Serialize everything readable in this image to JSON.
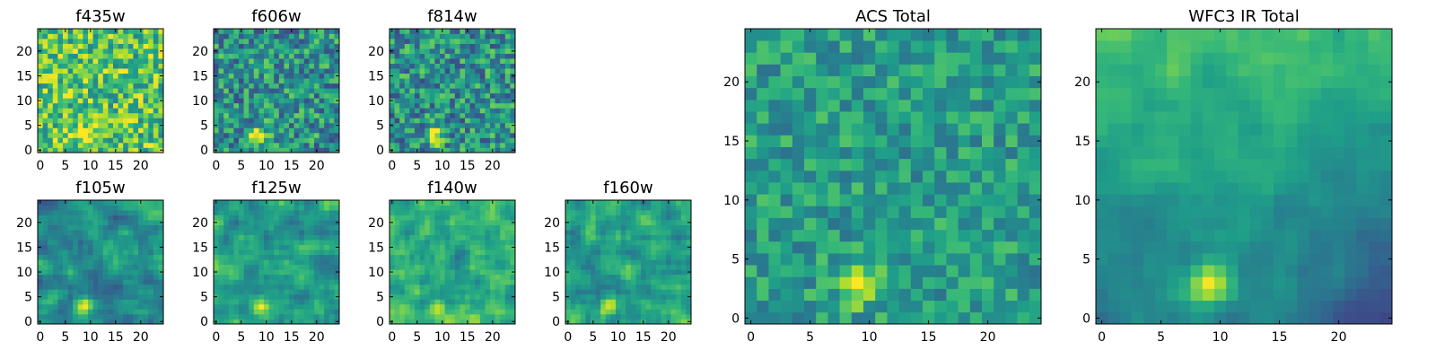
{
  "figure": {
    "background": "#ffffff"
  },
  "chart_data": [
    {
      "type": "heatmap",
      "title": "f435w",
      "xlim": [
        -0.5,
        24.5
      ],
      "ylim": [
        -0.5,
        24.5
      ],
      "xticks": [
        "0",
        "5",
        "10",
        "15",
        "20"
      ],
      "yticks": [
        "0",
        "5",
        "10",
        "15",
        "20"
      ],
      "colormap": "viridis",
      "source_position": [
        9,
        3
      ],
      "source_strength": 0.45,
      "noise_level": 0.55,
      "bg_level": 0.72,
      "blur": false
    },
    {
      "type": "heatmap",
      "title": "f606w",
      "xlim": [
        -0.5,
        24.5
      ],
      "ylim": [
        -0.5,
        24.5
      ],
      "xticks": [
        "0",
        "5",
        "10",
        "15",
        "20"
      ],
      "yticks": [
        "0",
        "5",
        "10",
        "15",
        "20"
      ],
      "colormap": "viridis",
      "source_position": [
        8.5,
        3
      ],
      "source_strength": 0.6,
      "noise_level": 0.55,
      "bg_level": 0.5,
      "blur": false
    },
    {
      "type": "heatmap",
      "title": "f814w",
      "xlim": [
        -0.5,
        24.5
      ],
      "ylim": [
        -0.5,
        24.5
      ],
      "xticks": [
        "0",
        "5",
        "10",
        "15",
        "20"
      ],
      "yticks": [
        "0",
        "5",
        "10",
        "15",
        "20"
      ],
      "colormap": "viridis",
      "source_position": [
        8.5,
        3
      ],
      "source_strength": 0.6,
      "noise_level": 0.55,
      "bg_level": 0.5,
      "blur": false
    },
    {
      "type": "heatmap",
      "title": "f105w",
      "xlim": [
        -0.5,
        24.5
      ],
      "ylim": [
        -0.5,
        24.5
      ],
      "xticks": [
        "0",
        "5",
        "10",
        "15",
        "20"
      ],
      "yticks": [
        "0",
        "5",
        "10",
        "15",
        "20"
      ],
      "colormap": "viridis",
      "source_position": [
        9,
        3.5
      ],
      "source_strength": 0.5,
      "noise_level": 0.45,
      "bg_level": 0.5,
      "blur": true
    },
    {
      "type": "heatmap",
      "title": "f125w",
      "xlim": [
        -0.5,
        24.5
      ],
      "ylim": [
        -0.5,
        24.5
      ],
      "xticks": [
        "0",
        "5",
        "10",
        "15",
        "20"
      ],
      "yticks": [
        "0",
        "5",
        "10",
        "15",
        "20"
      ],
      "colormap": "viridis",
      "source_position": [
        9,
        3
      ],
      "source_strength": 0.45,
      "noise_level": 0.45,
      "bg_level": 0.55,
      "blur": true
    },
    {
      "type": "heatmap",
      "title": "f140w",
      "xlim": [
        -0.5,
        24.5
      ],
      "ylim": [
        -0.5,
        24.5
      ],
      "xticks": [
        "0",
        "5",
        "10",
        "15",
        "20"
      ],
      "yticks": [
        "0",
        "5",
        "10",
        "15",
        "20"
      ],
      "colormap": "viridis",
      "source_position": [
        9,
        3
      ],
      "source_strength": 0.4,
      "noise_level": 0.45,
      "bg_level": 0.62,
      "blur": true
    },
    {
      "type": "heatmap",
      "title": "f160w",
      "xlim": [
        -0.5,
        24.5
      ],
      "ylim": [
        -0.5,
        24.5
      ],
      "xticks": [
        "0",
        "5",
        "10",
        "15",
        "20"
      ],
      "yticks": [
        "0",
        "5",
        "10",
        "15",
        "20"
      ],
      "colormap": "viridis",
      "source_position": [
        8,
        3.5
      ],
      "source_strength": 0.45,
      "noise_level": 0.45,
      "bg_level": 0.55,
      "blur": true
    },
    {
      "type": "heatmap",
      "title": "ACS Total",
      "xlim": [
        -0.5,
        24.5
      ],
      "ylim": [
        -0.5,
        24.5
      ],
      "xticks": [
        "0",
        "5",
        "10",
        "15",
        "20"
      ],
      "yticks": [
        "0",
        "5",
        "10",
        "15",
        "20"
      ],
      "colormap": "viridis",
      "source_position": [
        9,
        3
      ],
      "source_strength": 0.45,
      "noise_level": 0.35,
      "bg_level": 0.55,
      "blur": false
    },
    {
      "type": "heatmap",
      "title": "WFC3 IR Total",
      "xlim": [
        -0.5,
        24.5
      ],
      "ylim": [
        -0.5,
        24.5
      ],
      "xticks": [
        "0",
        "5",
        "10",
        "15",
        "20"
      ],
      "yticks": [
        "0",
        "5",
        "10",
        "15",
        "20"
      ],
      "colormap": "viridis",
      "source_position": [
        9,
        3
      ],
      "source_strength": 0.55,
      "noise_level": 0.2,
      "bg_level": 0.45,
      "blur": true
    }
  ]
}
